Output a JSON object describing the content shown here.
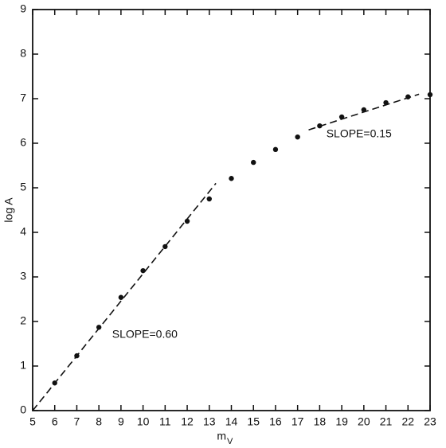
{
  "chart_data": {
    "type": "scatter",
    "xlabel": "m",
    "xlabel_subscript": "V",
    "ylabel": "log A",
    "x": [
      6,
      7,
      8,
      9,
      10,
      11,
      12,
      13,
      14,
      15,
      16,
      17,
      18,
      19,
      20,
      21,
      22,
      23
    ],
    "values": [
      0.62,
      1.23,
      1.87,
      2.54,
      3.14,
      3.68,
      4.25,
      4.75,
      5.21,
      5.57,
      5.86,
      6.14,
      6.39,
      6.59,
      6.75,
      6.91,
      7.04,
      7.09
    ],
    "color": "#111111",
    "fits": [
      {
        "x": [
          5,
          13.3
        ],
        "y": [
          0,
          5.1
        ],
        "label": "SLOPE=0.60"
      },
      {
        "x": [
          17.5,
          22.5
        ],
        "y": [
          6.3,
          7.1
        ],
        "label": "SLOPE=0.15"
      }
    ],
    "xlim": [
      5,
      23
    ],
    "ylim": [
      0,
      9
    ],
    "xticks": [
      5,
      6,
      7,
      8,
      9,
      10,
      11,
      12,
      13,
      14,
      15,
      16,
      17,
      18,
      19,
      20,
      21,
      22,
      23
    ],
    "yticks": [
      0,
      1,
      2,
      3,
      4,
      5,
      6,
      7,
      8,
      9
    ],
    "grid": false
  }
}
